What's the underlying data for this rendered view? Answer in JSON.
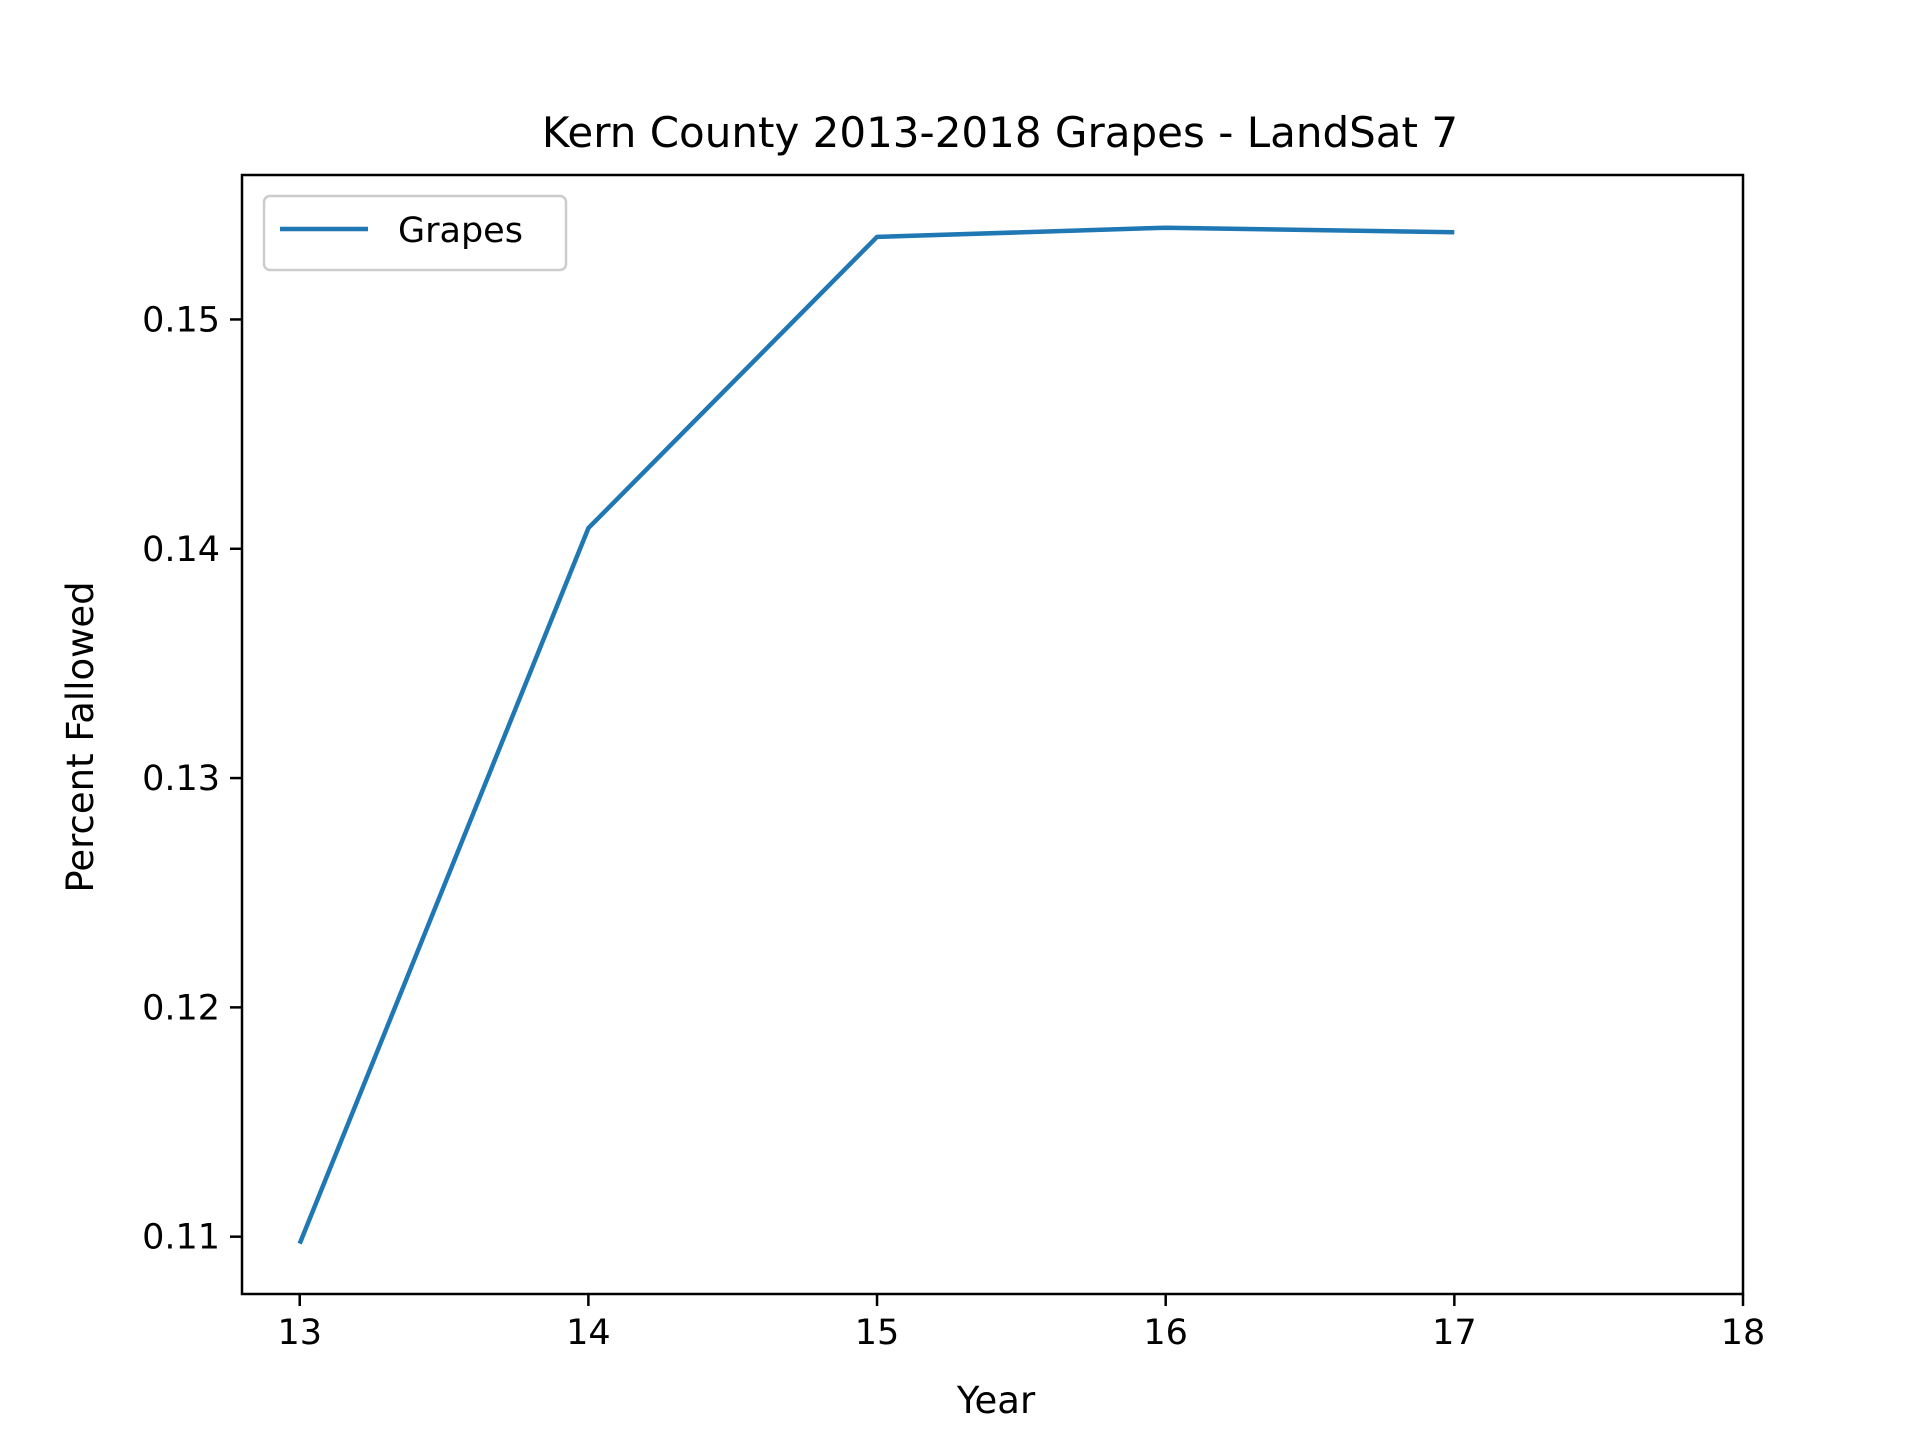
{
  "chart_data": {
    "type": "line",
    "title": "Kern County 2013-2018 Grapes - LandSat 7",
    "xlabel": "Year",
    "ylabel": "Percent Fallowed",
    "x_ticks": [
      "13",
      "14",
      "15",
      "16",
      "17",
      "18"
    ],
    "y_ticks": [
      "0.11",
      "0.12",
      "0.13",
      "0.14",
      "0.15"
    ],
    "xlim": [
      12.8,
      18
    ],
    "ylim": [
      0.1075,
      0.1563
    ],
    "grid": false,
    "legend_position": "upper left",
    "series": [
      {
        "name": "Grapes",
        "color": "#1f77b4",
        "x": [
          13,
          14,
          15,
          16,
          17
        ],
        "y": [
          0.1097,
          0.1409,
          0.1536,
          0.154,
          0.1538
        ]
      }
    ]
  }
}
